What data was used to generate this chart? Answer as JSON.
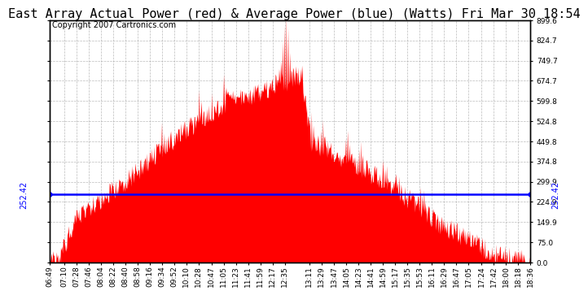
{
  "title": "East Array Actual Power (red) & Average Power (blue) (Watts) Fri Mar 30 18:54",
  "copyright": "Copyright 2007 Cartronics.com",
  "average_power": 252.42,
  "y_max": 899.6,
  "y_min": 0.0,
  "yticks": [
    0.0,
    75.0,
    149.9,
    224.9,
    299.9,
    374.8,
    449.8,
    524.8,
    599.8,
    674.7,
    749.7,
    824.7,
    899.6
  ],
  "xtick_labels": [
    "06:49",
    "07:10",
    "07:28",
    "07:46",
    "08:04",
    "08:22",
    "08:40",
    "08:58",
    "09:16",
    "09:34",
    "09:52",
    "10:10",
    "10:28",
    "10:47",
    "11:05",
    "11:23",
    "11:41",
    "11:59",
    "12:17",
    "12:35",
    "13:11",
    "13:29",
    "13:47",
    "14:05",
    "14:23",
    "14:41",
    "14:59",
    "15:17",
    "15:35",
    "15:53",
    "16:11",
    "16:29",
    "16:47",
    "17:05",
    "17:24",
    "17:42",
    "18:00",
    "18:18",
    "18:36"
  ],
  "background_color": "#ffffff",
  "fill_color": "#ff0000",
  "line_color": "#0000ff",
  "grid_color": "#aaaaaa",
  "title_fontsize": 11,
  "copyright_fontsize": 7,
  "tick_fontsize": 6.5,
  "avg_label_fontsize": 7
}
